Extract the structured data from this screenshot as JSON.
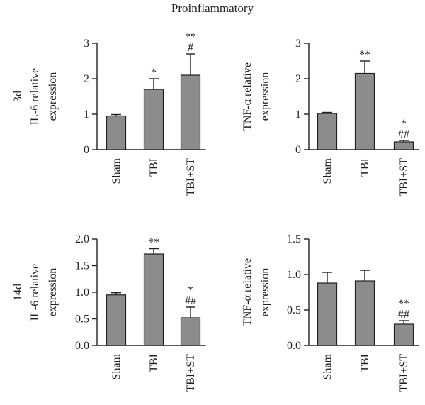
{
  "figure": {
    "title": "Proinflammatory"
  },
  "colors": {
    "bar": "#8c8c8c",
    "stroke": "#231f20"
  },
  "chart_data": [
    {
      "type": "bar",
      "row_label": "3d",
      "ylabel_lines": [
        "IL-6 relative",
        "expression"
      ],
      "categories": [
        "Sham",
        "TBI",
        "TBI+ST"
      ],
      "values": [
        0.95,
        1.7,
        2.1
      ],
      "errors": [
        0.04,
        0.3,
        0.6
      ],
      "significance": [
        [],
        [
          "*"
        ],
        [
          "**",
          "#"
        ]
      ],
      "ylim": [
        0,
        3
      ],
      "yticks": [
        0,
        1,
        2,
        3
      ],
      "ytick_labels": [
        "0",
        "1",
        "2",
        "3"
      ]
    },
    {
      "type": "bar",
      "row_label": "",
      "ylabel_lines": [
        "TNF-α relative",
        "expression"
      ],
      "categories": [
        "Sham",
        "TBI",
        "TBI+ST"
      ],
      "values": [
        1.02,
        2.15,
        0.22
      ],
      "errors": [
        0.03,
        0.35,
        0.04
      ],
      "significance": [
        [],
        [
          "**"
        ],
        [
          "*",
          "##"
        ]
      ],
      "ylim": [
        0,
        3
      ],
      "yticks": [
        0,
        1,
        2,
        3
      ],
      "ytick_labels": [
        "0",
        "1",
        "2",
        "3"
      ]
    },
    {
      "type": "bar",
      "row_label": "14d",
      "ylabel_lines": [
        "IL-6 relative",
        "expression"
      ],
      "categories": [
        "Sham",
        "TBI",
        "TBI+ST"
      ],
      "values": [
        0.95,
        1.72,
        0.52
      ],
      "errors": [
        0.04,
        0.1,
        0.2
      ],
      "significance": [
        [],
        [
          "**"
        ],
        [
          "*",
          "##"
        ]
      ],
      "ylim": [
        0,
        2
      ],
      "yticks": [
        0,
        0.5,
        1,
        1.5,
        2
      ],
      "ytick_labels": [
        "0.0",
        "0.5",
        "1.0",
        "1.5",
        "2.0"
      ]
    },
    {
      "type": "bar",
      "row_label": "",
      "ylabel_lines": [
        "TNF-α relative",
        "expression"
      ],
      "categories": [
        "Sham",
        "TBI",
        "TBI+ST"
      ],
      "values": [
        0.88,
        0.91,
        0.3
      ],
      "errors": [
        0.15,
        0.15,
        0.05
      ],
      "significance": [
        [],
        [],
        [
          "**",
          "##"
        ]
      ],
      "ylim": [
        0,
        1.5
      ],
      "yticks": [
        0,
        0.5,
        1,
        1.5
      ],
      "ytick_labels": [
        "0.0",
        "0.5",
        "1.0",
        "1.5"
      ]
    }
  ]
}
